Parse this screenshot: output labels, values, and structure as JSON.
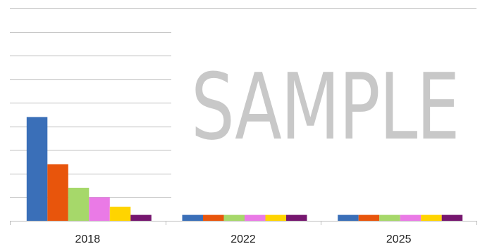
{
  "chart_data": {
    "type": "bar",
    "categories": [
      "2018",
      "2022",
      "2025"
    ],
    "series": [
      {
        "color": "#3a6fb8",
        "values": [
          4.4,
          0.25,
          0.25
        ]
      },
      {
        "color": "#e8550c",
        "values": [
          2.4,
          0.25,
          0.25
        ]
      },
      {
        "color": "#a6d86a",
        "values": [
          1.4,
          0.25,
          0.25
        ]
      },
      {
        "color": "#ea7ae6",
        "values": [
          1.0,
          0.25,
          0.25
        ]
      },
      {
        "color": "#ffd400",
        "values": [
          0.6,
          0.25,
          0.25
        ]
      },
      {
        "color": "#76176f",
        "values": [
          0.25,
          0.25,
          0.25
        ]
      }
    ],
    "ylim": [
      0,
      9
    ],
    "grid": true,
    "legend": "none"
  },
  "watermark": {
    "text": "SAMPLE"
  }
}
